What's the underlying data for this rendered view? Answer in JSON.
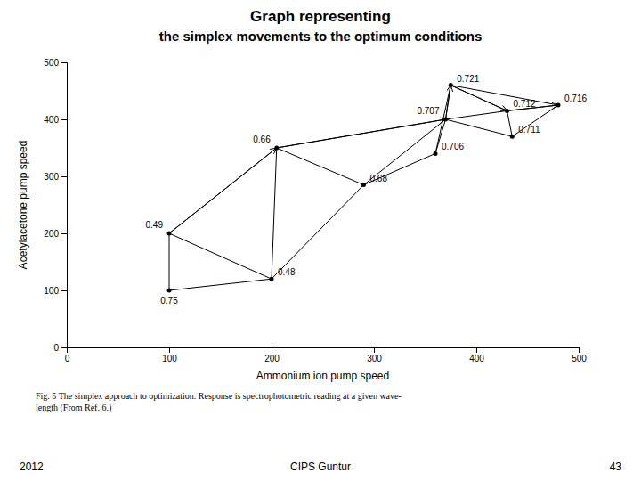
{
  "chart_data": {
    "type": "simplex",
    "title": "Graph representing",
    "subtitle": "the simplex movements to the optimum conditions",
    "x_label": "Ammonium ion pump speed",
    "y_label": "Acetylacetone pump speed",
    "xlim": [
      0,
      500
    ],
    "ylim": [
      0,
      500
    ],
    "xticks": [
      0,
      100,
      200,
      300,
      400,
      500
    ],
    "yticks": [
      0,
      100,
      200,
      300,
      400,
      500
    ],
    "color": "#000000",
    "marker": "circle",
    "x": [
      100,
      100,
      200,
      205,
      290,
      370,
      360,
      375,
      430,
      480,
      435
    ],
    "values": [
      100,
      200,
      120,
      350,
      285,
      400,
      340,
      460,
      415,
      425,
      370
    ],
    "point_labels": [
      "0.75",
      "0.49",
      "0.48",
      "0.66",
      "0.68",
      "0.707",
      "0.706",
      "0.721",
      "0.712",
      "0.716",
      "0.711"
    ],
    "edges": [
      {
        "x": [
          100,
          100
        ],
        "values": [
          100,
          200
        ]
      },
      {
        "x": [
          100,
          200
        ],
        "values": [
          100,
          120
        ]
      },
      {
        "x": [
          100,
          200
        ],
        "values": [
          200,
          120
        ]
      },
      {
        "x": [
          100,
          205
        ],
        "values": [
          200,
          350
        ]
      },
      {
        "x": [
          200,
          205
        ],
        "values": [
          120,
          350
        ]
      },
      {
        "x": [
          205,
          290
        ],
        "values": [
          350,
          285
        ]
      },
      {
        "x": [
          200,
          290
        ],
        "values": [
          120,
          285
        ]
      },
      {
        "x": [
          205,
          370
        ],
        "values": [
          350,
          400
        ]
      },
      {
        "x": [
          290,
          370
        ],
        "values": [
          285,
          400
        ]
      },
      {
        "x": [
          370,
          360
        ],
        "values": [
          400,
          340
        ]
      },
      {
        "x": [
          290,
          360
        ],
        "values": [
          285,
          340
        ]
      },
      {
        "x": [
          370,
          375
        ],
        "values": [
          400,
          460
        ]
      },
      {
        "x": [
          360,
          375
        ],
        "values": [
          340,
          460
        ]
      },
      {
        "x": [
          375,
          430
        ],
        "values": [
          460,
          415
        ]
      },
      {
        "x": [
          370,
          430
        ],
        "values": [
          400,
          415
        ]
      },
      {
        "x": [
          430,
          480
        ],
        "values": [
          415,
          425
        ]
      },
      {
        "x": [
          375,
          480
        ],
        "values": [
          460,
          425
        ]
      },
      {
        "x": [
          430,
          435
        ],
        "values": [
          415,
          370
        ]
      },
      {
        "x": [
          480,
          435
        ],
        "values": [
          425,
          370
        ]
      },
      {
        "x": [
          370,
          435
        ],
        "values": [
          400,
          370
        ]
      }
    ],
    "arrows": [
      {
        "x": [
          100,
          205
        ],
        "values": [
          200,
          350
        ]
      },
      {
        "x": [
          205,
          370
        ],
        "values": [
          350,
          400
        ]
      },
      {
        "x": [
          370,
          375
        ],
        "values": [
          400,
          460
        ]
      },
      {
        "x": [
          375,
          430
        ],
        "values": [
          460,
          415
        ]
      },
      {
        "x": [
          430,
          480
        ],
        "values": [
          415,
          425
        ]
      }
    ],
    "caption": "Fig. 5   The simplex approach to optimization. Response is spectrophotometric reading at a given wave-\nlength  (From Ref. 6.)",
    "footer": [
      "2012",
      "CIPS Guntur",
      "43"
    ]
  }
}
